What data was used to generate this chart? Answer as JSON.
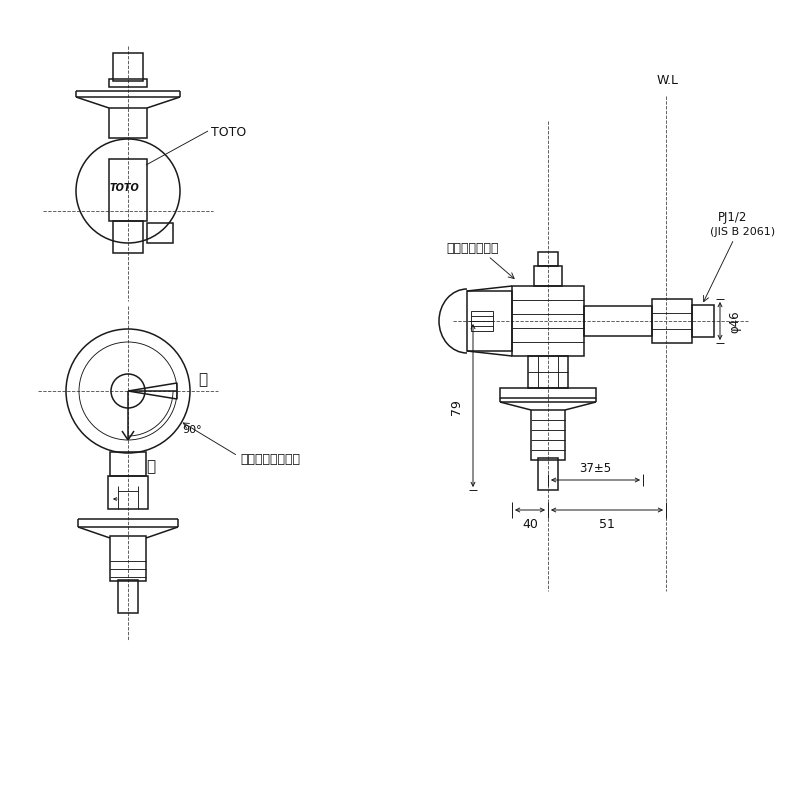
{
  "bg_color": "#ffffff",
  "line_color": "#1a1a1a",
  "dash_color": "#555555",
  "text_color": "#111111",
  "figsize": [
    8.0,
    8.12
  ],
  "dpi": 100,
  "lw": 1.1,
  "lwt": 0.65,
  "lwd": 0.7,
  "annotations": {
    "toto_label": "TOTO",
    "toto_body": "TOTO",
    "closed": "閉",
    "open": "開",
    "handle_angle": "90°",
    "handle_label": "ハンドル回転角度",
    "pale_white": "ペールホワイト",
    "wl": "W.L",
    "pj12": "PJ1/2",
    "jis": "(JIS B 2061)",
    "dim_79": "79",
    "dim_37": "37±5",
    "dim_40": "40",
    "dim_51": "51",
    "dim_phi46": "φ46"
  }
}
